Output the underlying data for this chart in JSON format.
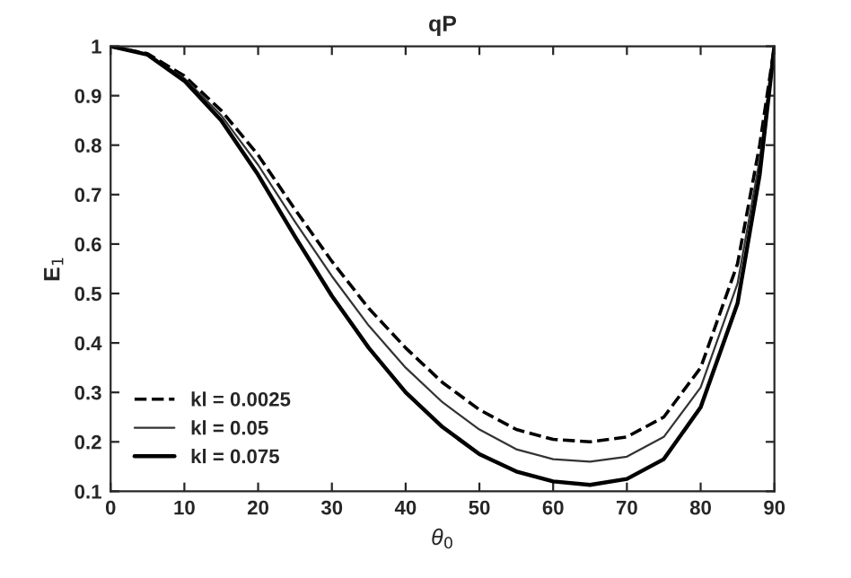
{
  "chart_data": {
    "type": "line",
    "title": "qP",
    "xlabel": "θ$_{0}$",
    "ylabel": "E$_{1}$",
    "x": [
      0,
      5,
      10,
      15,
      20,
      25,
      30,
      35,
      40,
      45,
      50,
      55,
      60,
      65,
      70,
      75,
      80,
      85,
      88,
      90
    ],
    "series": [
      {
        "name": "kl = 0.0025",
        "color": "#000000",
        "line_style": "dashed",
        "values": [
          1,
          0.985,
          0.94,
          0.87,
          0.78,
          0.67,
          0.565,
          0.47,
          0.39,
          0.32,
          0.265,
          0.225,
          0.205,
          0.2,
          0.21,
          0.25,
          0.35,
          0.56,
          0.8,
          1
        ]
      },
      {
        "name": "kl = 0.05",
        "color": "#333333",
        "line_style": "solid",
        "values": [
          1,
          0.984,
          0.935,
          0.86,
          0.76,
          0.645,
          0.535,
          0.435,
          0.35,
          0.28,
          0.225,
          0.185,
          0.165,
          0.16,
          0.17,
          0.21,
          0.31,
          0.52,
          0.77,
          1
        ]
      },
      {
        "name": "kl = 0.075",
        "color": "#000000",
        "line_style": "solid",
        "values": [
          1,
          0.983,
          0.93,
          0.85,
          0.74,
          0.615,
          0.495,
          0.39,
          0.3,
          0.23,
          0.175,
          0.14,
          0.12,
          0.113,
          0.125,
          0.165,
          0.27,
          0.48,
          0.74,
          1
        ]
      }
    ],
    "xlim": [
      0,
      90
    ],
    "xticks": [
      0,
      10,
      20,
      30,
      40,
      50,
      60,
      70,
      80,
      90
    ],
    "ylim": [
      0.1,
      1
    ],
    "yticks": [
      0.1,
      0.2,
      0.3,
      0.4,
      0.5,
      0.6,
      0.7,
      0.8,
      0.9,
      1
    ],
    "legend": "bottom left",
    "grid": false
  }
}
